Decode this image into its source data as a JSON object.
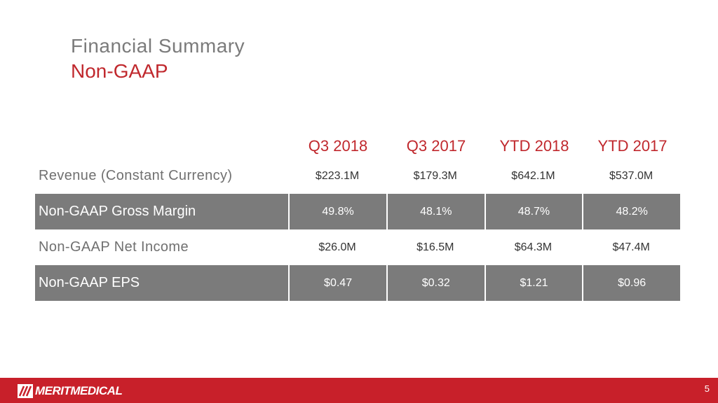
{
  "header": {
    "title": "Financial Summary",
    "subtitle": "Non-GAAP"
  },
  "table": {
    "columns": [
      "Q3 2018",
      "Q3 2017",
      "YTD 2018",
      "YTD 2017"
    ],
    "rows": [
      [
        "Revenue (Constant Currency)",
        "$223.1M",
        "$179.3M",
        "$642.1M",
        "$537.0M"
      ],
      [
        "Non-GAAP Gross Margin",
        "49.8%",
        "48.1%",
        "48.7%",
        "48.2%"
      ],
      [
        "Non-GAAP Net Income",
        "$26.0M",
        "$16.5M",
        "$64.3M",
        "$47.4M"
      ],
      [
        "Non-GAAP EPS",
        "$0.47",
        "$0.32",
        "$1.21",
        "$0.96"
      ]
    ]
  },
  "footer": {
    "logo": "MERITMEDICAL",
    "page": "5"
  }
}
